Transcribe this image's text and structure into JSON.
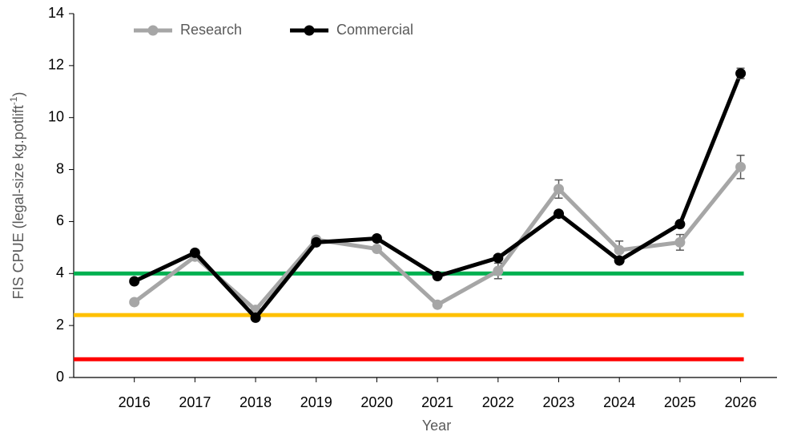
{
  "chart_data": {
    "type": "line",
    "x": [
      2016,
      2017,
      2018,
      2019,
      2020,
      2021,
      2022,
      2023,
      2024,
      2025,
      2026
    ],
    "series": [
      {
        "name": "Research",
        "color": "#a6a6a6",
        "values": [
          2.9,
          4.65,
          2.6,
          5.3,
          4.95,
          2.8,
          4.1,
          7.25,
          4.9,
          5.2,
          8.1
        ],
        "errors": [
          null,
          null,
          null,
          null,
          null,
          null,
          0.3,
          0.35,
          0.35,
          0.3,
          0.45
        ]
      },
      {
        "name": "Commercial",
        "color": "#000000",
        "values": [
          3.7,
          4.8,
          2.3,
          5.2,
          5.35,
          3.9,
          4.6,
          6.3,
          4.5,
          5.9,
          11.7
        ],
        "errors": [
          null,
          null,
          null,
          null,
          null,
          null,
          null,
          null,
          null,
          null,
          0.2
        ]
      }
    ],
    "reference_lines": [
      {
        "value": 4,
        "color": "#00b050"
      },
      {
        "value": 2.4,
        "color": "#ffc000"
      },
      {
        "value": 0.7,
        "color": "#ff0000"
      }
    ],
    "xlabel": "Year",
    "ylabel": "FIS CPUE (legal-size kg.potlift",
    "ylabel_sup": "-1",
    "ylabel_end": ")",
    "xlim": [
      2015,
      2026.6
    ],
    "xticks": [
      2016,
      2017,
      2018,
      2019,
      2020,
      2021,
      2022,
      2023,
      2024,
      2025,
      2026
    ],
    "ylim": [
      0,
      14
    ],
    "yticks": [
      0,
      2,
      4,
      6,
      8,
      10,
      12,
      14
    ],
    "legend": "top-left"
  }
}
